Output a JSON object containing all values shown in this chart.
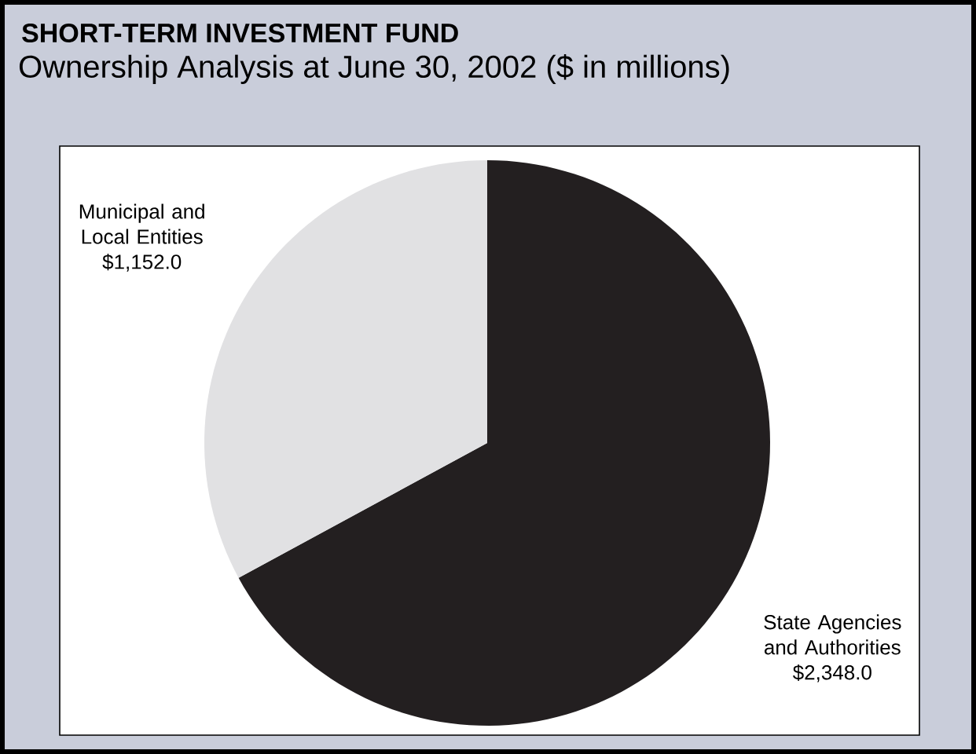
{
  "chart_data": {
    "type": "pie",
    "title": "SHORT-TERM INVESTMENT FUND",
    "subtitle": "Ownership Analysis at June 30, 2002 ($ in millions)",
    "categories": [
      "State Agencies and Authorities",
      "Municipal and Local Entities"
    ],
    "values": [
      2348.0,
      1152.0
    ],
    "value_labels": [
      "$2,348.0",
      "$1,152.0"
    ],
    "colors": [
      "#231f20",
      "#e1e1e3"
    ]
  }
}
